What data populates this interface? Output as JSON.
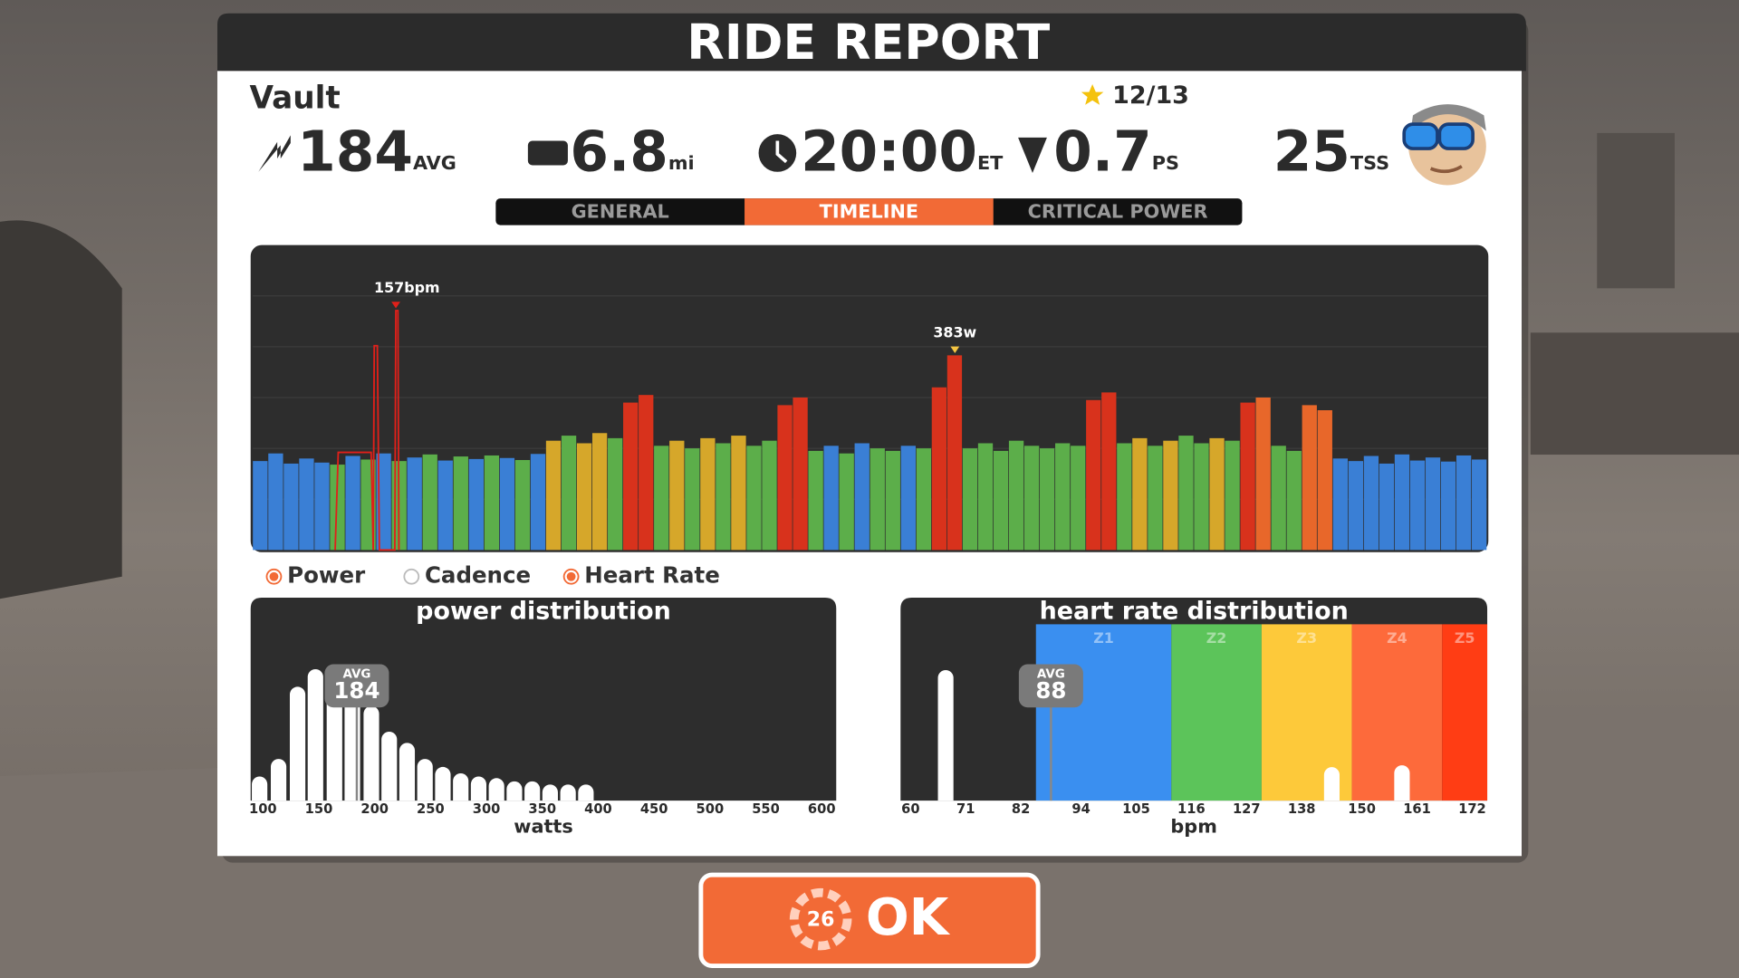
{
  "header": {
    "title": "RIDE REPORT"
  },
  "rider": {
    "name": "Vault",
    "rating": "12/13"
  },
  "stats": [
    {
      "value": "184",
      "unit": "AVG"
    },
    {
      "value": "6.8",
      "unit": "mi"
    },
    {
      "value": "20:00",
      "unit": "ET"
    },
    {
      "value": "0.7",
      "unit": "PS"
    },
    {
      "value": "25",
      "unit": "TSS"
    }
  ],
  "tabs": [
    {
      "label": "GENERAL",
      "active": false
    },
    {
      "label": "TIMELINE",
      "active": true
    },
    {
      "label": "CRITICAL POWER",
      "active": false
    }
  ],
  "timeline": {
    "type": "bar",
    "x": [
      0,
      15,
      30,
      45,
      60,
      75,
      90,
      105,
      120,
      135,
      150,
      165,
      180,
      195,
      210,
      225,
      240,
      255,
      270,
      285,
      300,
      315,
      330,
      345,
      360,
      375,
      390,
      405,
      420,
      435,
      450,
      465,
      480,
      495,
      510,
      525,
      540,
      555,
      570,
      585,
      600,
      615,
      630,
      645,
      660,
      675,
      690,
      705,
      720,
      735,
      750,
      765,
      780,
      795,
      810,
      825,
      840,
      855,
      870,
      885,
      900,
      915,
      930,
      945,
      960,
      975,
      990,
      1005,
      1020,
      1035,
      1050,
      1065,
      1080,
      1095,
      1110,
      1125,
      1140,
      1155,
      1170,
      1185
    ],
    "xlim": [
      0,
      1200
    ],
    "ylim": [
      0,
      600
    ],
    "grid_values": [
      100,
      200,
      300,
      400,
      500
    ],
    "power": {
      "values": [
        175,
        190,
        170,
        180,
        172,
        168,
        185,
        178,
        190,
        175,
        182,
        188,
        176,
        184,
        179,
        186,
        181,
        177,
        189,
        215,
        225,
        210,
        230,
        220,
        290,
        305,
        205,
        215,
        200,
        220,
        210,
        225,
        205,
        215,
        285,
        300,
        195,
        205,
        190,
        210,
        200,
        195,
        205,
        200,
        320,
        383,
        200,
        210,
        195,
        215,
        205,
        200,
        210,
        205,
        295,
        310,
        210,
        220,
        205,
        215,
        225,
        210,
        220,
        215,
        290,
        300,
        205,
        195,
        285,
        275,
        180,
        175,
        185,
        170,
        188,
        176,
        182,
        174,
        186,
        178
      ],
      "colors": [
        "#3a7fd5",
        "#3a7fd5",
        "#3a7fd5",
        "#3a7fd5",
        "#3a7fd5",
        "#5cae4a",
        "#3a7fd5",
        "#5cae4a",
        "#3a7fd5",
        "#5cae4a",
        "#3a7fd5",
        "#5cae4a",
        "#3a7fd5",
        "#5cae4a",
        "#3a7fd5",
        "#5cae4a",
        "#3a7fd5",
        "#5cae4a",
        "#3a7fd5",
        "#d6a72a",
        "#5cae4a",
        "#d6a72a",
        "#d6a72a",
        "#5cae4a",
        "#d8321c",
        "#d8321c",
        "#5cae4a",
        "#d6a72a",
        "#5cae4a",
        "#d6a72a",
        "#5cae4a",
        "#d6a72a",
        "#5cae4a",
        "#5cae4a",
        "#d8321c",
        "#d8321c",
        "#5cae4a",
        "#3a7fd5",
        "#5cae4a",
        "#3a7fd5",
        "#5cae4a",
        "#5cae4a",
        "#3a7fd5",
        "#5cae4a",
        "#d8321c",
        "#d8321c",
        "#5cae4a",
        "#5cae4a",
        "#5cae4a",
        "#5cae4a",
        "#5cae4a",
        "#5cae4a",
        "#5cae4a",
        "#5cae4a",
        "#d8321c",
        "#d8321c",
        "#5cae4a",
        "#d6a72a",
        "#5cae4a",
        "#d6a72a",
        "#5cae4a",
        "#5cae4a",
        "#d6a72a",
        "#5cae4a",
        "#d8321c",
        "#e8672a",
        "#5cae4a",
        "#5cae4a",
        "#e8672a",
        "#e8672a",
        "#3a7fd5",
        "#3a7fd5",
        "#3a7fd5",
        "#3a7fd5",
        "#3a7fd5",
        "#3a7fd5",
        "#3a7fd5",
        "#3a7fd5",
        "#3a7fd5",
        "#3a7fd5"
      ],
      "peak_label": "383w",
      "peak_color": "#f5c542"
    },
    "heart_rate": {
      "x": [
        80,
        83,
        115,
        117,
        118,
        121,
        123,
        138,
        139,
        141,
        142
      ],
      "values": [
        0,
        64,
        64,
        0,
        134,
        134,
        0,
        0,
        157,
        157,
        0
      ],
      "y2lim": [
        0,
        200
      ],
      "color": "#e0201a",
      "peak_label": "157bpm"
    }
  },
  "legend": [
    {
      "label": "Power",
      "checked": true
    },
    {
      "label": "Cadence",
      "checked": false
    },
    {
      "label": "Heart Rate",
      "checked": true
    }
  ],
  "power_distribution": {
    "type": "bar",
    "title": "power distribution",
    "x": [
      97,
      114,
      131,
      147,
      164,
      180,
      197,
      213,
      229,
      245,
      261,
      277,
      293,
      309,
      325,
      341,
      357,
      373,
      389
    ],
    "values": [
      15,
      26,
      71,
      82,
      83,
      82,
      59,
      43,
      36,
      26,
      21,
      17,
      15,
      14,
      12,
      12,
      10,
      10,
      10
    ],
    "xlim": [
      89,
      613
    ],
    "ylim": [
      0,
      110
    ],
    "xticks": [
      100,
      150,
      200,
      250,
      300,
      350,
      400,
      450,
      500,
      550,
      600
    ],
    "xlabel": "watts",
    "avg": {
      "label": "AVG",
      "value": 184
    }
  },
  "heart_rate_distribution": {
    "type": "bar",
    "title": "heart rate distribution",
    "x": [
      67,
      144,
      158
    ],
    "values": [
      74,
      19,
      20
    ],
    "xlim": [
      58,
      175
    ],
    "ylim": [
      0,
      100
    ],
    "xticks": [
      60,
      71,
      82,
      94,
      105,
      116,
      127,
      138,
      150,
      161,
      172
    ],
    "xlabel": "bpm",
    "zones": [
      {
        "label": "Z1",
        "range": [
          85,
          112
        ],
        "color": "#3a8ff0"
      },
      {
        "label": "Z2",
        "range": [
          112,
          130
        ],
        "color": "#5cc45a"
      },
      {
        "label": "Z3",
        "range": [
          130,
          148
        ],
        "color": "#fdc93a"
      },
      {
        "label": "Z4",
        "range": [
          148,
          166
        ],
        "color": "#fd6a3b"
      },
      {
        "label": "Z5",
        "range": [
          166,
          175
        ],
        "color": "#ff3d14"
      }
    ],
    "avg": {
      "label": "AVG",
      "value": 88
    }
  },
  "button": {
    "countdown": "26",
    "label": "OK"
  }
}
